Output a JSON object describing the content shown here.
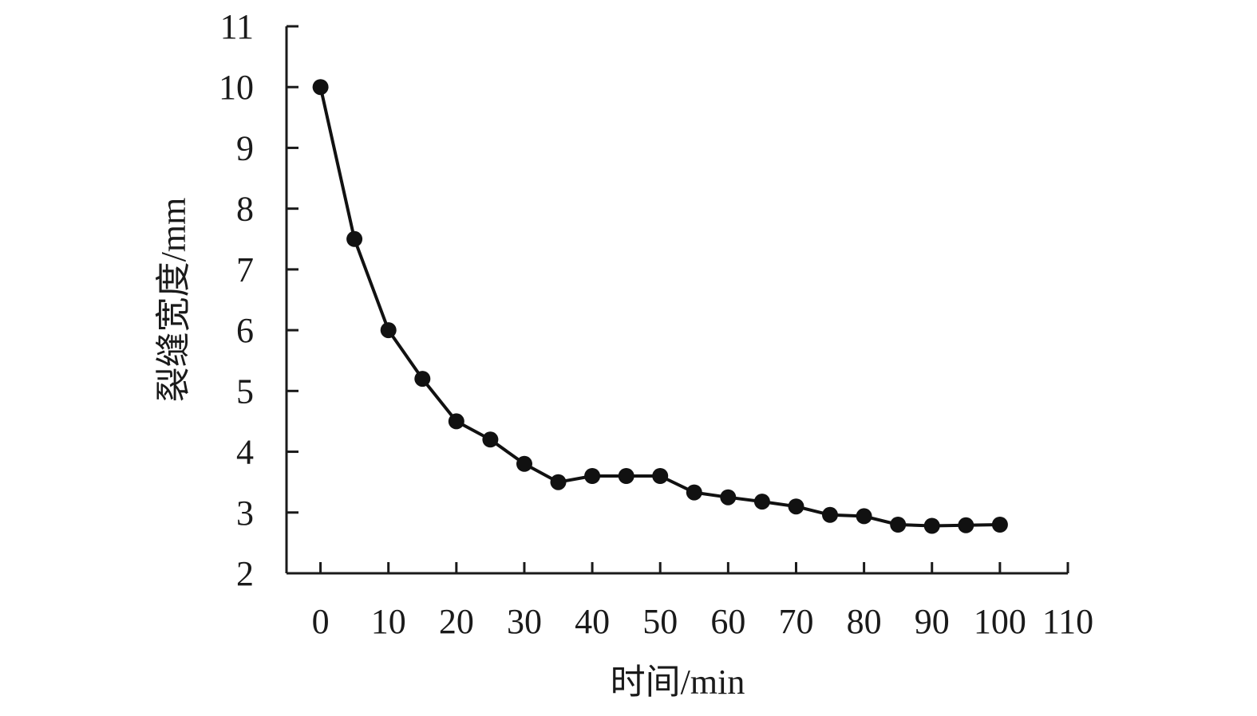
{
  "chart_data": {
    "type": "line",
    "xlabel": "时间/min",
    "ylabel": "裂缝宽度/mm",
    "xlim": [
      -5,
      110
    ],
    "ylim": [
      2,
      11
    ],
    "x_ticks": [
      0,
      10,
      20,
      30,
      40,
      50,
      60,
      70,
      80,
      90,
      100,
      110
    ],
    "y_ticks": [
      2,
      3,
      4,
      5,
      6,
      7,
      8,
      9,
      10,
      11
    ],
    "grid": false,
    "series": [
      {
        "x": [
          0,
          5,
          10,
          15,
          20,
          25,
          30,
          35,
          40,
          45,
          50,
          55,
          60,
          65,
          70,
          75,
          80,
          85,
          90,
          95,
          100
        ],
        "y": [
          10,
          7.5,
          6,
          5.2,
          4.5,
          4.2,
          3.8,
          3.5,
          3.6,
          3.6,
          3.6,
          3.33,
          3.25,
          3.18,
          3.1,
          2.96,
          2.94,
          2.8,
          2.78,
          2.79,
          2.8
        ],
        "color": "#111111",
        "marker": "filled-circle"
      }
    ]
  }
}
